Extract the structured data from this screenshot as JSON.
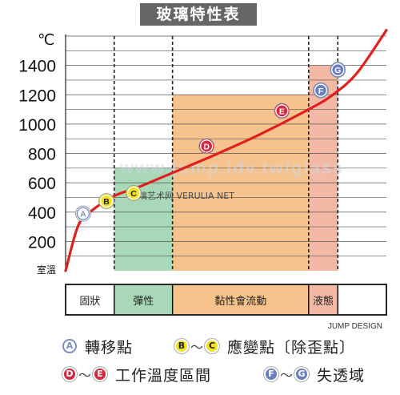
{
  "title": "玻璃特性表",
  "watermark": "www.jump.idv.tw/glass",
  "watermark2": "玻璃艺术网  VERULIA NET",
  "credit": "JUMP DESIGN",
  "colors": {
    "curve": "#e0201c",
    "elastic": "#a8d8b8",
    "working": "#f7c38c",
    "liquid": "#f4b9a5",
    "circle_A": "#7b8fc4",
    "circle_BC": "#f2e321",
    "circle_DE": "#d7263d",
    "circle_FG": "#6a7fc0"
  },
  "chart_data": {
    "type": "line",
    "ylabel": "℃",
    "ymin_label": "室溫",
    "yticks": [
      200,
      400,
      600,
      800,
      1000,
      1200,
      1400
    ],
    "ylim": [
      0,
      1600
    ],
    "grid": true,
    "curve": [
      {
        "t": 0.0,
        "y": 0
      },
      {
        "t": 0.25,
        "y": 300
      },
      {
        "t": 0.5,
        "y": 400
      },
      {
        "t": 1.0,
        "y": 510
      },
      {
        "t": 1.5,
        "y": 570
      },
      {
        "t": 2.0,
        "y": 640
      },
      {
        "t": 3.0,
        "y": 780
      },
      {
        "t": 4.0,
        "y": 930
      },
      {
        "t": 5.0,
        "y": 1100
      },
      {
        "t": 5.5,
        "y": 1200
      },
      {
        "t": 6.0,
        "y": 1350
      },
      {
        "t": 6.6,
        "y": 1640
      }
    ],
    "points": [
      {
        "label": "A",
        "t": 0.36,
        "y": 390,
        "style": "A"
      },
      {
        "label": "B",
        "t": 0.84,
        "y": 475,
        "style": "BC"
      },
      {
        "label": "C",
        "t": 1.4,
        "y": 530,
        "style": "BC"
      },
      {
        "label": "D",
        "t": 2.9,
        "y": 850,
        "style": "DE"
      },
      {
        "label": "E",
        "t": 4.45,
        "y": 1090,
        "style": "DE"
      },
      {
        "label": "F",
        "t": 5.25,
        "y": 1230,
        "style": "FG"
      },
      {
        "label": "G",
        "t": 5.6,
        "y": 1370,
        "style": "FG"
      }
    ],
    "regions": [
      {
        "name": "固狀",
        "t0": 0.0,
        "t1": 1.0,
        "ytop": null,
        "color": "none"
      },
      {
        "name": "彈性",
        "t0": 1.0,
        "t1": 2.2,
        "ytop": 700,
        "color": "elastic"
      },
      {
        "name": "黏性會流動",
        "t0": 2.2,
        "t1": 5.0,
        "ytop": 1200,
        "color": "working"
      },
      {
        "name": "液態",
        "t0": 5.0,
        "t1": 5.6,
        "ytop": 1400,
        "color": "liquid"
      }
    ],
    "dividers": [
      1.0,
      2.2,
      5.0,
      5.6
    ]
  },
  "legend": [
    {
      "circles": [
        "A"
      ],
      "text": "轉移點"
    },
    {
      "circles": [
        "B",
        "C"
      ],
      "text": "應變點〔除歪點〕"
    },
    {
      "circles": [
        "D",
        "E"
      ],
      "text": "工作溫度區間"
    },
    {
      "circles": [
        "F",
        "G"
      ],
      "text": "失透域"
    }
  ]
}
